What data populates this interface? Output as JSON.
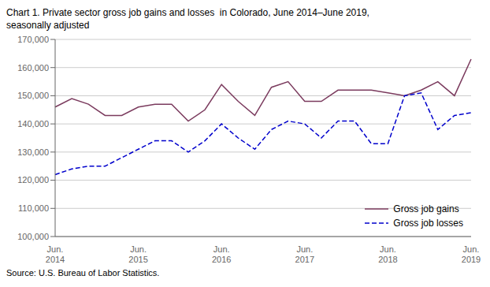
{
  "chart_data": {
    "type": "line",
    "title": "Chart 1. Private sector gross job gains and losses  in Colorado, June 2014–June 2019,\nseasonally adjusted",
    "annotations": [
      "Source: U.S. Bureau of Labor Statistics."
    ],
    "categories": [
      "Jun.\n2014",
      null,
      null,
      null,
      null,
      "Jun.\n2015",
      null,
      null,
      null,
      null,
      "Jun.\n2016",
      null,
      null,
      null,
      null,
      "Jun.\n2017",
      null,
      null,
      null,
      null,
      "Jun.\n2018",
      null,
      null,
      null,
      null,
      "Jun.\n2019"
    ],
    "series": [
      {
        "name": "Gross job gains",
        "color": "#7B3B5E",
        "line_style": "solid",
        "values": [
          146000,
          149000,
          147000,
          143000,
          143000,
          146000,
          147000,
          147000,
          141000,
          145000,
          154000,
          148000,
          143000,
          153000,
          155000,
          148000,
          148000,
          152000,
          152000,
          152000,
          151000,
          150000,
          152000,
          155000,
          150000,
          163000
        ]
      },
      {
        "name": "Gross job losses",
        "color": "#0000CC",
        "line_style": "dashed",
        "values": [
          122000,
          124000,
          125000,
          125000,
          128000,
          131000,
          134000,
          134000,
          130000,
          134000,
          140000,
          135000,
          131000,
          138000,
          141000,
          140000,
          135000,
          141000,
          141000,
          133000,
          133000,
          150000,
          151000,
          138000,
          143000,
          144000
        ]
      }
    ],
    "ylim": [
      100000,
      170000
    ],
    "yticks": [
      {
        "value": 100000,
        "label": "100,000"
      },
      {
        "value": 110000,
        "label": "110,000"
      },
      {
        "value": 120000,
        "label": "120,000"
      },
      {
        "value": 130000,
        "label": "130,000"
      },
      {
        "value": 140000,
        "label": "140,000"
      },
      {
        "value": 150000,
        "label": "150,000"
      },
      {
        "value": 160000,
        "label": "160,000"
      },
      {
        "value": 170000,
        "label": "170,000"
      }
    ],
    "grid": true,
    "legend": "lower right"
  }
}
